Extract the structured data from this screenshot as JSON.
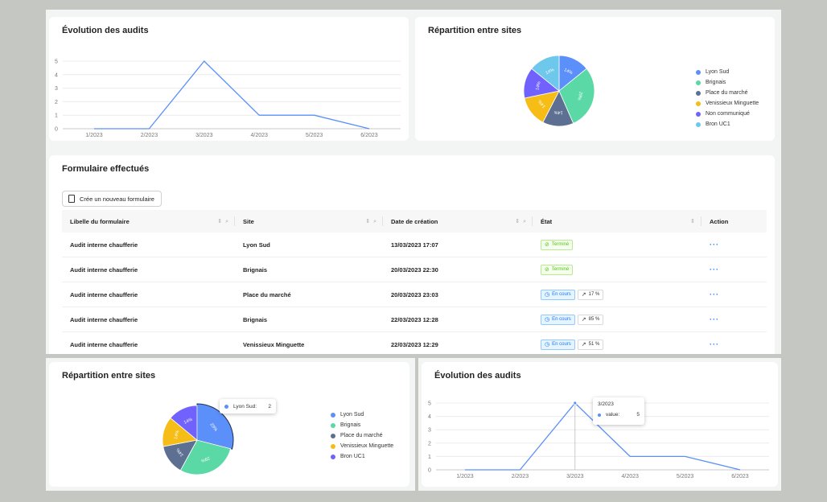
{
  "top": {
    "evolution": {
      "title": "Évolution des audits",
      "chart_data": {
        "type": "line",
        "title": "Évolution des audits",
        "categories": [
          "1/2023",
          "2/2023",
          "3/2023",
          "4/2023",
          "5/2023",
          "6/2023"
        ],
        "values": [
          0,
          0,
          5,
          1,
          1,
          0
        ],
        "yticks": [
          0,
          1,
          2,
          3,
          4,
          5
        ],
        "ylim": [
          0,
          5
        ],
        "grid": true,
        "color": "#5b8ff9"
      }
    },
    "repartition": {
      "title": "Répartition entre sites",
      "chart_data": {
        "type": "pie",
        "title": "Répartition entre sites",
        "labels": [
          "Lyon Sud",
          "Brignais",
          "Place du marché",
          "Venissieux Minguette",
          "Non communiqué",
          "Bron UC1"
        ],
        "values": [
          14,
          29,
          14,
          14,
          14,
          14
        ],
        "slice_labels": [
          "14%",
          "29%",
          "14%",
          "14%",
          "14%",
          "14%"
        ],
        "colors": [
          "#5b8ff9",
          "#5ad8a6",
          "#5d7092",
          "#f6bd16",
          "#7262fd",
          "#6dc8ec"
        ],
        "legend": "right"
      }
    }
  },
  "forms": {
    "title": "Formulaire effectués",
    "new_button": "Crée un nouveau formulaire",
    "columns": [
      "Libelle du formulaire",
      "Site",
      "Date de création",
      "État",
      "Action"
    ],
    "rows": [
      {
        "label": "Audit interne chaufferie",
        "site": "Lyon Sud",
        "date": "13/03/2023 17:07",
        "status": "Terminé",
        "status_type": "done",
        "progress": ""
      },
      {
        "label": "Audit interne chaufferie",
        "site": "Brignais",
        "date": "20/03/2023 22:30",
        "status": "Terminé",
        "status_type": "done",
        "progress": ""
      },
      {
        "label": "Audit interne chaufferie",
        "site": "Place du marché",
        "date": "20/03/2023 23:03",
        "status": "En cours",
        "status_type": "prog",
        "progress": "17 %"
      },
      {
        "label": "Audit interne chaufferie",
        "site": "Brignais",
        "date": "22/03/2023 12:28",
        "status": "En cours",
        "status_type": "prog",
        "progress": "85 %"
      },
      {
        "label": "Audit interne chaufferie",
        "site": "Venissieux Minguette",
        "date": "22/03/2023 12:29",
        "status": "En cours",
        "status_type": "prog",
        "progress": "51 %"
      }
    ],
    "action_label": "···"
  },
  "bottom": {
    "repartition": {
      "title": "Répartition entre sites",
      "chart_data": {
        "type": "pie",
        "title": "Répartition entre sites",
        "labels": [
          "Lyon Sud",
          "Brignais",
          "Place du marché",
          "Venissieux Minguette",
          "Bron UC1"
        ],
        "values": [
          29,
          29,
          14,
          14,
          14
        ],
        "slice_labels": [
          "29%",
          "29%",
          "14%",
          "14%",
          "14%"
        ],
        "colors": [
          "#5b8ff9",
          "#5ad8a6",
          "#5d7092",
          "#f6bd16",
          "#7262fd"
        ],
        "legend": "right"
      },
      "tooltip": {
        "label": "Lyon Sud:",
        "value": "2"
      }
    },
    "evolution": {
      "title": "Évolution des audits",
      "chart_data": {
        "type": "line",
        "title": "Évolution des audits",
        "categories": [
          "1/2023",
          "2/2023",
          "3/2023",
          "4/2023",
          "5/2023",
          "6/2023"
        ],
        "values": [
          0,
          0,
          5,
          1,
          1,
          0
        ],
        "yticks": [
          0,
          1,
          2,
          3,
          4,
          5
        ],
        "ylim": [
          0,
          5
        ],
        "grid": true,
        "color": "#5b8ff9"
      },
      "tooltip": {
        "title": "3/2023",
        "label": "value:",
        "value": "5"
      }
    }
  }
}
